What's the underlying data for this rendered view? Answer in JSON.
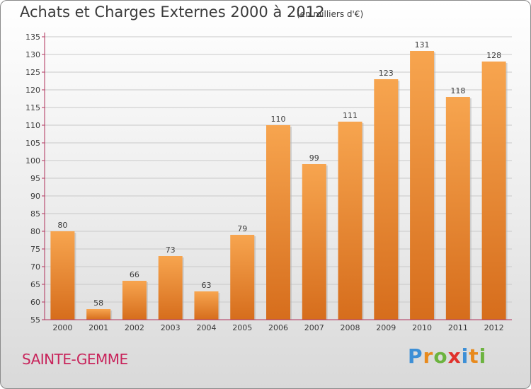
{
  "title": "Achats et Charges Externes 2000 à 2012",
  "subtitle": "(en milliers d'€)",
  "location": "SAINTE-GEMME",
  "logo": {
    "letters": [
      "P",
      "r",
      "o",
      "x",
      "i",
      "t",
      "i"
    ],
    "colors": [
      "#3d8fd6",
      "#e88a1d",
      "#6cb33f",
      "#e0312c",
      "#3d8fd6",
      "#e88a1d",
      "#6cb33f"
    ]
  },
  "colors": {
    "bar_top": "#f7a54f",
    "bar_bottom": "#d66d1c",
    "axis": "#b0305a",
    "grid": "#c9c9c9",
    "text": "#3b3b3b"
  },
  "chart_data": {
    "type": "bar",
    "categories": [
      "2000",
      "2001",
      "2002",
      "2003",
      "2004",
      "2005",
      "2006",
      "2007",
      "2008",
      "2009",
      "2010",
      "2011",
      "2012"
    ],
    "values": [
      80,
      58,
      66,
      73,
      63,
      79,
      110,
      99,
      111,
      123,
      131,
      118,
      128
    ],
    "ylim": [
      55,
      135
    ],
    "yticks": [
      55,
      60,
      65,
      70,
      75,
      80,
      85,
      90,
      95,
      100,
      105,
      110,
      115,
      120,
      125,
      130,
      135
    ],
    "grid": true
  }
}
